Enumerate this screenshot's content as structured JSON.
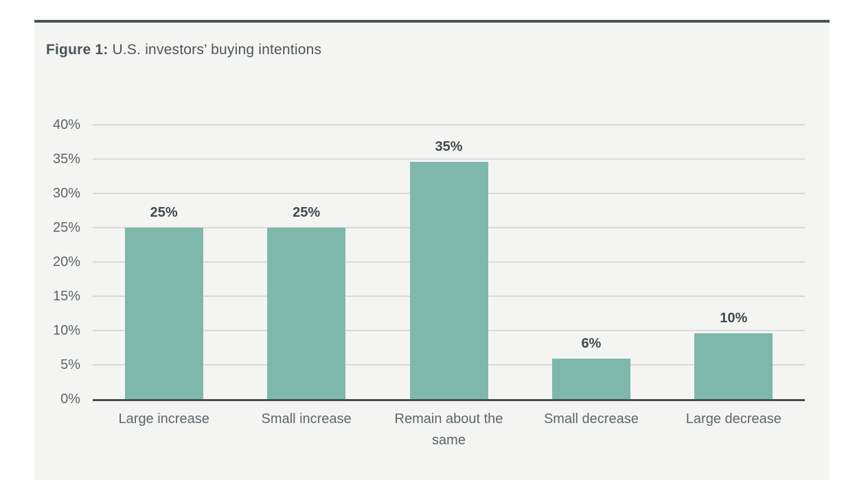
{
  "figure": {
    "label_bold": "Figure 1:",
    "title_rest": " U.S. investors’ buying intentions"
  },
  "chart_data": {
    "type": "bar",
    "title": "Figure 1: U.S. investors’ buying intentions",
    "categories": [
      "Large increase",
      "Small increase",
      "Remain about the same",
      "Small decrease",
      "Large decrease"
    ],
    "values": [
      25,
      25,
      35,
      6,
      10
    ],
    "data_labels": [
      "25%",
      "25%",
      "35%",
      "6%",
      "10%"
    ],
    "bar_draw_heights": [
      25,
      25,
      34.6,
      5.9,
      9.6
    ],
    "xlabel": "",
    "ylabel": "",
    "ylim": [
      0,
      40
    ],
    "ytick_step": 5,
    "ytick_labels": [
      "0%",
      "5%",
      "10%",
      "15%",
      "20%",
      "25%",
      "30%",
      "35%",
      "40%"
    ],
    "grid": true,
    "legend": false,
    "colors": {
      "bar": "#7eb8ab",
      "gridline": "#d9dbd8",
      "axis_line": "#414e50",
      "tick_label": "#5d6568",
      "category_label": "#5d6568",
      "value_label": "#3f4a4c",
      "title_text": "#4b5457",
      "panel_background": "#f4f5f3",
      "panel_top_border": "#485456",
      "page_background": "#ffffff"
    }
  }
}
